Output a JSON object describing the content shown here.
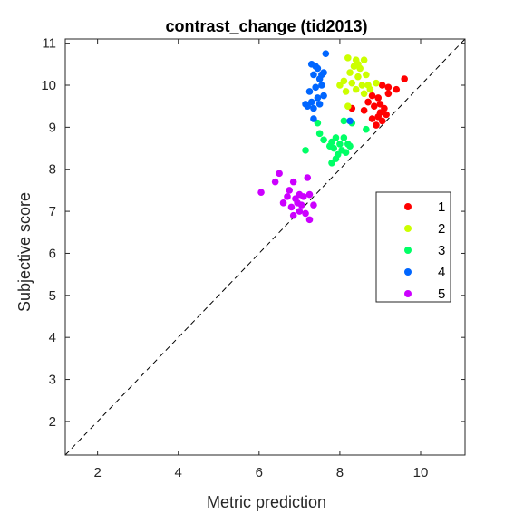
{
  "chart_data": {
    "type": "scatter",
    "title": "contrast_change (tid2013)",
    "xlabel": "Metric prediction",
    "ylabel": "Subjective score",
    "xlim": [
      1.2,
      11.1
    ],
    "ylim": [
      1.2,
      11.1
    ],
    "xticks": [
      2,
      4,
      6,
      8,
      10
    ],
    "yticks": [
      2,
      3,
      4,
      5,
      6,
      7,
      8,
      9,
      10,
      11
    ],
    "grid": false,
    "box": true,
    "reference_line": {
      "style": "dashed",
      "color": "#000000",
      "from": [
        1.2,
        1.2
      ],
      "to": [
        11.1,
        11.1
      ]
    },
    "legend": {
      "position": "right-middle"
    },
    "series": [
      {
        "name": "1",
        "color": "#ff0000",
        "points": [
          [
            9.6,
            10.15
          ],
          [
            9.4,
            9.9
          ],
          [
            9.2,
            9.95
          ],
          [
            9.05,
            10.0
          ],
          [
            8.95,
            9.7
          ],
          [
            8.8,
            9.75
          ],
          [
            8.7,
            9.6
          ],
          [
            9.0,
            9.55
          ],
          [
            8.85,
            9.5
          ],
          [
            9.1,
            9.45
          ],
          [
            8.3,
            9.45
          ],
          [
            8.6,
            9.4
          ],
          [
            9.0,
            9.35
          ],
          [
            8.95,
            9.25
          ],
          [
            9.15,
            9.3
          ],
          [
            8.8,
            9.2
          ],
          [
            9.05,
            9.15
          ],
          [
            8.9,
            9.05
          ],
          [
            8.7,
            9.6
          ],
          [
            9.2,
            9.8
          ]
        ]
      },
      {
        "name": "2",
        "color": "#ccff00",
        "points": [
          [
            8.2,
            10.65
          ],
          [
            8.4,
            10.6
          ],
          [
            8.6,
            10.6
          ],
          [
            8.35,
            10.45
          ],
          [
            8.5,
            10.4
          ],
          [
            8.25,
            10.3
          ],
          [
            8.45,
            10.2
          ],
          [
            8.65,
            10.25
          ],
          [
            8.1,
            10.1
          ],
          [
            8.3,
            10.05
          ],
          [
            8.0,
            10.0
          ],
          [
            8.55,
            10.0
          ],
          [
            8.7,
            10.0
          ],
          [
            8.9,
            10.05
          ],
          [
            8.4,
            9.9
          ],
          [
            8.15,
            9.85
          ],
          [
            8.6,
            9.8
          ],
          [
            8.45,
            10.5
          ],
          [
            8.2,
            9.5
          ],
          [
            8.75,
            9.9
          ]
        ]
      },
      {
        "name": "3",
        "color": "#00ff66",
        "points": [
          [
            7.45,
            9.1
          ],
          [
            7.5,
            8.85
          ],
          [
            8.65,
            8.95
          ],
          [
            8.1,
            9.15
          ],
          [
            8.3,
            9.1
          ],
          [
            7.9,
            8.75
          ],
          [
            7.8,
            8.65
          ],
          [
            8.0,
            8.6
          ],
          [
            8.2,
            8.6
          ],
          [
            7.85,
            8.5
          ],
          [
            8.05,
            8.45
          ],
          [
            7.95,
            8.35
          ],
          [
            8.15,
            8.4
          ],
          [
            7.9,
            8.25
          ],
          [
            7.8,
            8.15
          ],
          [
            7.15,
            8.45
          ],
          [
            7.6,
            8.7
          ],
          [
            8.25,
            8.55
          ],
          [
            7.75,
            8.55
          ],
          [
            8.1,
            8.75
          ]
        ]
      },
      {
        "name": "4",
        "color": "#0066ff",
        "points": [
          [
            7.65,
            10.75
          ],
          [
            7.3,
            10.5
          ],
          [
            7.45,
            10.4
          ],
          [
            7.6,
            10.3
          ],
          [
            7.35,
            10.25
          ],
          [
            7.5,
            10.15
          ],
          [
            7.55,
            10.0
          ],
          [
            7.4,
            9.95
          ],
          [
            7.25,
            9.85
          ],
          [
            7.6,
            9.75
          ],
          [
            7.45,
            9.7
          ],
          [
            7.3,
            9.6
          ],
          [
            7.2,
            9.5
          ],
          [
            7.35,
            9.45
          ],
          [
            7.5,
            9.55
          ],
          [
            7.4,
            10.45
          ],
          [
            8.25,
            9.15
          ],
          [
            7.35,
            9.2
          ],
          [
            7.15,
            9.55
          ],
          [
            7.55,
            10.25
          ]
        ]
      },
      {
        "name": "5",
        "color": "#cc00ff",
        "points": [
          [
            6.5,
            7.9
          ],
          [
            7.2,
            7.8
          ],
          [
            6.85,
            7.7
          ],
          [
            6.4,
            7.7
          ],
          [
            6.05,
            7.45
          ],
          [
            6.75,
            7.5
          ],
          [
            7.0,
            7.4
          ],
          [
            7.1,
            7.35
          ],
          [
            6.9,
            7.3
          ],
          [
            7.25,
            7.4
          ],
          [
            6.95,
            7.2
          ],
          [
            7.05,
            7.15
          ],
          [
            7.35,
            7.15
          ],
          [
            6.6,
            7.2
          ],
          [
            6.8,
            7.1
          ],
          [
            7.0,
            7.0
          ],
          [
            7.15,
            6.95
          ],
          [
            6.85,
            6.9
          ],
          [
            7.25,
            6.8
          ],
          [
            6.7,
            7.35
          ]
        ]
      }
    ]
  }
}
